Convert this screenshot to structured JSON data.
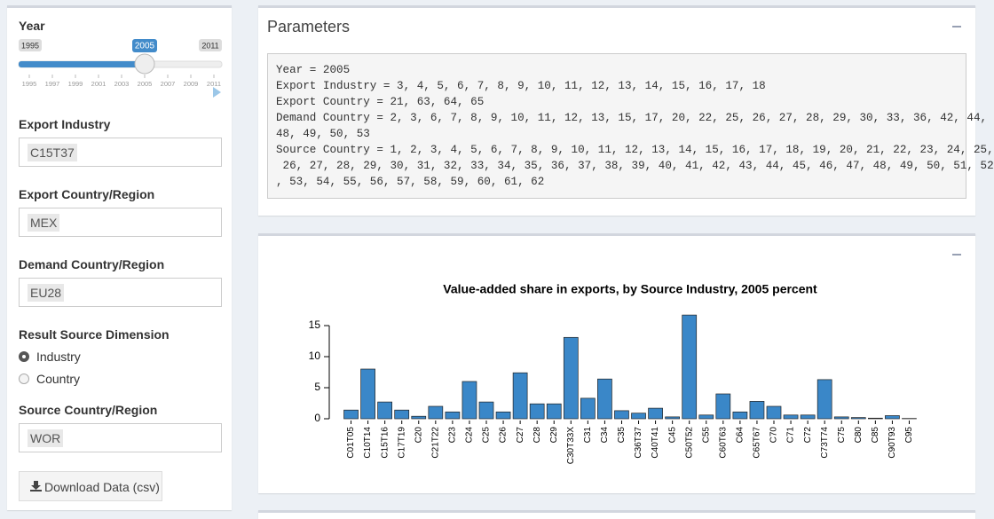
{
  "sidebar": {
    "year": {
      "label": "Year",
      "min": 1995,
      "max": 2011,
      "value": 2005,
      "ticks": [
        1995,
        1997,
        1999,
        2001,
        2003,
        2005,
        2007,
        2009,
        2011
      ]
    },
    "export_industry": {
      "label": "Export Industry",
      "value": "C15T37"
    },
    "export_country": {
      "label": "Export Country/Region",
      "value": "MEX"
    },
    "demand_country": {
      "label": "Demand Country/Region",
      "value": "EU28"
    },
    "result_source": {
      "label": "Result Source Dimension",
      "options": [
        "Industry",
        "Country"
      ],
      "selected_index": 0
    },
    "source_country": {
      "label": "Source Country/Region",
      "value": "WOR"
    },
    "download_button": "Download Data (csv)"
  },
  "parameters": {
    "title": "Parameters",
    "lines": [
      "Year = 2005",
      "Export Industry = 3, 4, 5, 6, 7, 8, 9, 10, 11, 12, 13, 14, 15, 16, 17, 18",
      "Export Country = 21, 63, 64, 65",
      "Demand Country = 2, 3, 6, 7, 8, 9, 10, 11, 12, 13, 15, 17, 20, 22, 25, 26, 27, 28, 29, 30, 33, 36, 42, 44,",
      "48, 49, 50, 53",
      "Source Country = 1, 2, 3, 4, 5, 6, 7, 8, 9, 10, 11, 12, 13, 14, 15, 16, 17, 18, 19, 20, 21, 22, 23, 24, 25,",
      " 26, 27, 28, 29, 30, 31, 32, 33, 34, 35, 36, 37, 38, 39, 40, 41, 42, 43, 44, 45, 46, 47, 48, 49, 50, 51, 52",
      ", 53, 54, 55, 56, 57, 58, 59, 60, 61, 62"
    ]
  },
  "chart_data": {
    "type": "bar",
    "title": "Value-added share in exports, by Source Industry, 2005 percent",
    "categories": [
      "C01T05",
      "C10T14",
      "C15T16",
      "C17T19",
      "C20",
      "C21T22",
      "C23",
      "C24",
      "C25",
      "C26",
      "C27",
      "C28",
      "C29",
      "C30T33X",
      "C31",
      "C34",
      "C35",
      "C36T37",
      "C40T41",
      "C45",
      "C50T52",
      "C55",
      "C60T63",
      "C64",
      "C65T67",
      "C70",
      "C71",
      "C72",
      "C73T74",
      "C75",
      "C80",
      "C85",
      "C90T93",
      "C95"
    ],
    "values": [
      1.4,
      8.0,
      2.7,
      1.4,
      0.4,
      2.0,
      1.1,
      6.0,
      2.7,
      1.1,
      7.4,
      2.4,
      2.4,
      13.1,
      3.3,
      6.4,
      1.3,
      0.9,
      1.7,
      0.3,
      16.7,
      0.6,
      4.0,
      1.1,
      2.8,
      2.0,
      0.6,
      0.6,
      6.3,
      0.3,
      0.2,
      0.1,
      0.5,
      0.05
    ],
    "color": "#3a87c8",
    "ylim": [
      0,
      17
    ],
    "yticks": [
      0,
      5,
      10,
      15
    ],
    "grid": false
  }
}
